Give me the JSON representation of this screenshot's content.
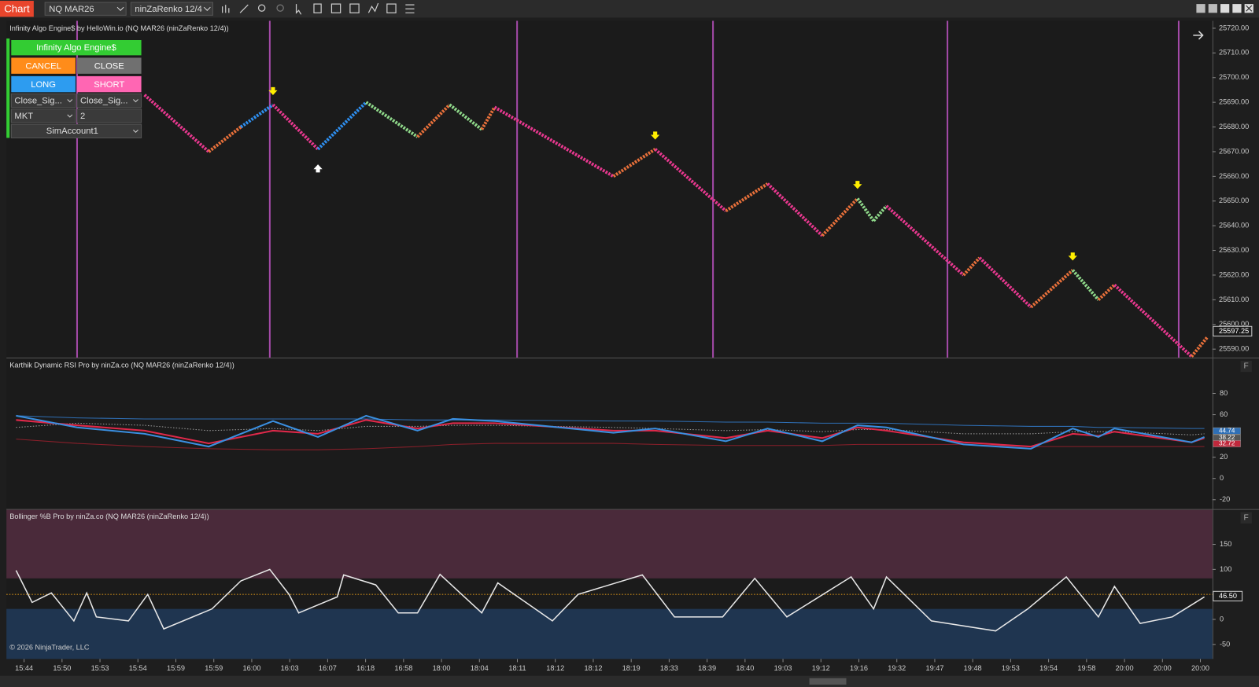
{
  "toolbar": {
    "tab": "Chart",
    "instrument": "NQ MAR26",
    "bar_type": "ninZaRenko 12/4"
  },
  "order_panel": {
    "title": "Infinity Algo Engine$",
    "buttons": [
      "CANCEL",
      "CLOSE",
      "LONG",
      "SHORT"
    ],
    "fields": [
      "Close_Sig...",
      "Close_Sig...",
      "MKT",
      "2",
      "SimAccount1"
    ]
  },
  "price_panel": {
    "title": "Infinity Algo Engine$ by HelloWin.io (NQ MAR26 (ninZaRenko 12/4))",
    "ylim": [
      25586.6,
      25723
    ],
    "yticks": [
      {
        "value": 25590,
        "label": "25590.00"
      },
      {
        "value": 25600,
        "label": "25600.00"
      },
      {
        "value": 25610,
        "label": "25610.00"
      },
      {
        "value": 25620,
        "label": "25620.00"
      },
      {
        "value": 25630,
        "label": "25630.00"
      },
      {
        "value": 25640,
        "label": "25640.00"
      },
      {
        "value": 25650,
        "label": "25650.00"
      },
      {
        "value": 25660,
        "label": "25660.00"
      },
      {
        "value": 25670,
        "label": "25670.00"
      },
      {
        "value": 25680,
        "label": "25680.00"
      },
      {
        "value": 25690,
        "label": "25690.00"
      },
      {
        "value": 25700,
        "label": "25700.00"
      },
      {
        "value": 25710,
        "label": "25710.00"
      },
      {
        "value": 25720,
        "label": "25720.00"
      }
    ],
    "bar_xlim": [
      -42.5,
      332.5
    ],
    "pivot_bars": [
      0,
      20,
      30,
      40,
      54,
      69,
      85,
      95,
      105,
      109,
      146,
      159,
      181,
      194,
      211,
      222,
      227,
      231,
      255,
      260,
      276,
      289,
      297,
      302,
      326,
      331
    ],
    "pivots": [
      25693,
      25670,
      25680,
      25689,
      25671,
      25690,
      25676,
      25689,
      25679,
      25688,
      25660,
      25671,
      25646,
      25657,
      25636,
      25651,
      25642,
      25648,
      25620,
      25627,
      25607,
      25622,
      25610,
      25616,
      25587,
      25595
    ],
    "segment_colors": [
      "#e8388f",
      "#e8703a",
      "#2e8ff0",
      "#e8388f",
      "#2e8ff0",
      "#8fd98a",
      "#e8703a",
      "#8fd98a",
      "#e8703a",
      "#e8388f",
      "#e8703a",
      "#e8388f",
      "#e8703a",
      "#e8388f",
      "#e8703a",
      "#8fd98a",
      "#8fd98a",
      "#e8388f",
      "#e8703a",
      "#e8388f",
      "#e8703a",
      "#8fd98a",
      "#e8703a",
      "#e8388f",
      "#e8703a"
    ],
    "session_breaks": [
      -21,
      39,
      116,
      177,
      250,
      322
    ],
    "signals": [
      {
        "at_pivot": 3,
        "direction": "down"
      },
      {
        "at_pivot": 4,
        "direction": "up"
      },
      {
        "at_pivot": 11,
        "direction": "down"
      },
      {
        "at_pivot": 15,
        "direction": "down"
      },
      {
        "at_pivot": 21,
        "direction": "down"
      }
    ],
    "last_price": 25597.25
  },
  "rsi_panel": {
    "title": "Karthik Dynamic RSI Pro by ninZa.co (NQ MAR26 (ninZaRenko 12/4))",
    "ylim": [
      -28,
      113
    ],
    "yticks": [
      -20,
      0,
      20,
      60,
      80
    ],
    "x": [
      -40,
      -21,
      0,
      20,
      40,
      54,
      69,
      85,
      96,
      109,
      146,
      159,
      181,
      194,
      211,
      222,
      231,
      255,
      276,
      289,
      297,
      302,
      326,
      330
    ],
    "lines": [
      {
        "color": "#2f6fb5",
        "width": 1,
        "values": [
          59,
          57,
          56,
          56,
          56,
          56,
          56,
          55,
          55,
          55,
          54,
          54,
          53,
          53,
          52,
          52,
          52,
          50,
          49,
          49,
          48,
          48,
          47,
          47
        ]
      },
      {
        "color": "#8a1f2a",
        "width": 1,
        "values": [
          37,
          33,
          30,
          28,
          27,
          27,
          28,
          30,
          32,
          33,
          33,
          32,
          31,
          31,
          31,
          32,
          32,
          32,
          30,
          30,
          30,
          30,
          30,
          30
        ]
      },
      {
        "color": "#9a9a9a",
        "width": 1,
        "dashed": true,
        "values": [
          48,
          52,
          50,
          45,
          47,
          45,
          49,
          49,
          50,
          50,
          48,
          47,
          45,
          46,
          44,
          46,
          46,
          42,
          42,
          44,
          44,
          44,
          41,
          42
        ]
      },
      {
        "color": "#e0294a",
        "width": 2,
        "values": [
          55,
          50,
          45,
          33,
          45,
          42,
          55,
          47,
          52,
          52,
          45,
          45,
          38,
          45,
          38,
          48,
          45,
          34,
          30,
          42,
          40,
          44,
          34,
          38
        ]
      },
      {
        "color": "#3a8fe0",
        "width": 2,
        "values": [
          59,
          48,
          42,
          30,
          54,
          39,
          59,
          45,
          56,
          54,
          43,
          47,
          35,
          47,
          35,
          50,
          48,
          32,
          28,
          47,
          39,
          47,
          34,
          39
        ]
      }
    ],
    "value_labels": [
      44.74,
      38.22,
      32.72
    ],
    "value_label_colors": [
      "#2f6fb5",
      "#555555",
      "#c0283c"
    ]
  },
  "bb_panel": {
    "title": "Bollinger %B Pro by ninZa.co (NQ MAR26 (ninZaRenko 12/4))",
    "ylim": [
      -79,
      219
    ],
    "yticks": [
      -50,
      0,
      100,
      150
    ],
    "upper_level": 82,
    "lower_level": 21,
    "mid_level": 50,
    "x": [
      -40,
      -35,
      -29,
      -22,
      -18,
      -15,
      -5,
      1,
      6,
      21,
      30,
      39,
      45,
      48,
      60,
      62,
      72,
      79,
      85,
      92,
      105,
      110,
      127,
      135,
      155,
      165,
      180,
      190,
      200,
      220,
      227,
      231,
      245,
      265,
      275,
      287,
      297,
      302,
      310,
      320,
      326,
      330
    ],
    "values": [
      98,
      34,
      53,
      -3,
      53,
      5,
      -3,
      50,
      -19,
      21,
      77,
      100,
      50,
      13,
      45,
      89,
      69,
      13,
      13,
      90,
      13,
      73,
      -3,
      50,
      89,
      5,
      5,
      82,
      5,
      85,
      21,
      85,
      -3,
      -23,
      21,
      85,
      5,
      66,
      -8,
      5,
      29,
      45
    ],
    "last_value": {
      "value": 46.5,
      "label": "46.50"
    }
  },
  "time_axis": {
    "labels": [
      "15:44",
      "15:50",
      "15:53",
      "15:54",
      "15:59",
      "15:59",
      "16:00",
      "16:03",
      "16:07",
      "16:18",
      "16:58",
      "18:00",
      "18:04",
      "18:11",
      "18:12",
      "18:12",
      "18:19",
      "18:33",
      "18:39",
      "18:40",
      "19:03",
      "19:12",
      "19:16",
      "19:32",
      "19:47",
      "19:48",
      "19:53",
      "19:54",
      "19:58",
      "20:00",
      "20:00",
      "20:00"
    ]
  },
  "copyright": "© 2026 NinjaTrader, LLC"
}
